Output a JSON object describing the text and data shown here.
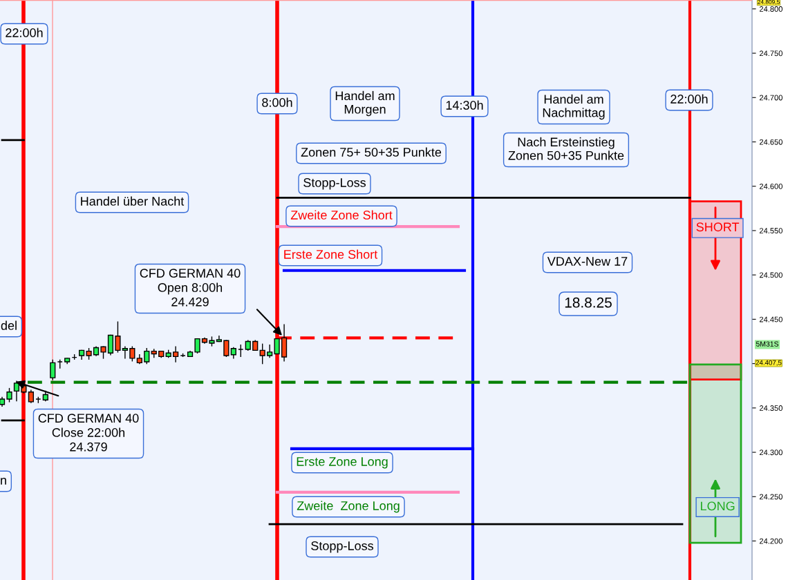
{
  "chart_data": {
    "type": "candlestick",
    "categories": [
      null,
      null,
      null,
      null,
      null,
      null,
      null,
      null,
      null,
      null,
      null,
      null,
      null,
      null,
      null,
      null,
      null,
      null,
      null,
      null,
      null,
      null,
      null,
      null,
      null,
      null,
      null,
      null,
      null,
      null,
      null,
      null,
      null,
      null,
      null,
      null,
      null,
      null,
      null,
      null,
      null,
      null,
      null,
      null,
      null,
      null,
      null,
      null,
      null,
      null,
      null,
      null,
      null,
      null,
      null,
      null,
      null,
      null,
      null,
      null,
      null,
      null,
      null,
      null,
      null,
      null,
      null,
      null,
      null,
      null,
      null,
      null,
      null,
      null,
      null,
      null,
      null,
      null,
      null,
      null,
      null,
      null,
      null,
      null,
      null,
      null,
      null,
      null,
      null,
      null,
      null,
      null,
      null,
      null,
      null,
      null,
      null,
      null,
      null,
      null,
      null,
      null,
      null,
      null
    ],
    "ohlc": [
      [
        24354,
        24362,
        24352,
        24360
      ],
      [
        24360,
        24372,
        24357,
        24368
      ],
      [
        24369,
        24380,
        24358,
        24378
      ],
      [
        24375,
        24377,
        24367,
        24368
      ],
      [
        24368,
        24370,
        24356,
        24357
      ],
      [
        24360,
        24362,
        24356,
        24360
      ],
      [
        24359,
        24369,
        24358,
        24365
      ],
      [
        24384,
        24404,
        24382,
        24401
      ],
      [
        24402,
        24404,
        24395,
        24402
      ],
      [
        24402,
        24406,
        24400,
        24406
      ],
      [
        24407,
        24410,
        24405,
        24407
      ],
      [
        24409,
        24415,
        24405,
        24415
      ],
      [
        24414,
        24417,
        24405,
        24409
      ],
      [
        24410,
        24419,
        24409,
        24418
      ],
      [
        24419,
        24419,
        24406,
        24413
      ],
      [
        24412,
        24432,
        24410,
        24432
      ],
      [
        24431,
        24447,
        24413,
        24415
      ],
      [
        24415,
        24419,
        24406,
        24417
      ],
      [
        24417,
        24419,
        24403,
        24406
      ],
      [
        24406,
        24410,
        24400,
        24401
      ],
      [
        24402,
        24417,
        24400,
        24414
      ],
      [
        24414,
        24416,
        24407,
        24411
      ],
      [
        24414,
        24414,
        24407,
        24408
      ],
      [
        24408,
        24415,
        24407,
        24412
      ],
      [
        24413,
        24419,
        24402,
        24408
      ],
      [
        24409,
        24411,
        24408,
        24409
      ],
      [
        24408,
        24414,
        24408,
        24413
      ],
      [
        24413,
        24428,
        24412,
        24428
      ],
      [
        24428,
        24429,
        24423,
        24424
      ],
      [
        24423,
        24430,
        24420,
        24426
      ],
      [
        24425,
        24431,
        24425,
        24427
      ],
      [
        24426,
        24426,
        24408,
        24409
      ],
      [
        24410,
        24418,
        24406,
        24417
      ],
      [
        24416,
        24421,
        24408,
        24416
      ],
      [
        24416,
        24426,
        24415,
        24425
      ],
      [
        24425,
        24426,
        24415,
        24415
      ],
      [
        24415,
        24422,
        24400,
        24409
      ],
      [
        24409,
        24421,
        24407,
        24413
      ],
      [
        24411,
        24428,
        24411,
        24428
      ],
      [
        24429,
        24444,
        24403,
        24407.5
      ],
      null,
      null,
      null,
      null,
      null,
      null,
      null,
      null,
      null,
      null,
      null,
      null,
      null,
      null,
      null,
      null,
      null,
      null,
      null,
      null,
      null,
      null,
      null,
      null,
      null,
      null,
      null,
      null,
      null,
      null,
      null,
      null,
      null,
      null,
      null,
      null,
      null,
      null,
      null,
      null,
      null,
      null,
      null,
      null,
      null,
      null,
      null,
      null,
      null,
      null,
      null,
      null,
      null,
      null,
      null,
      null,
      null,
      null,
      null,
      null,
      null,
      null,
      null,
      null
    ],
    "ylim": [
      24156,
      24810
    ],
    "yticks": [
      {
        "value": 24200,
        "label": "24.200"
      },
      {
        "value": 24250,
        "label": "24.250"
      },
      {
        "value": 24300,
        "label": "24.300"
      },
      {
        "value": 24350,
        "label": "24.350"
      },
      {
        "value": 24400,
        "label": null
      },
      {
        "value": 24450,
        "label": "24.450"
      },
      {
        "value": 24500,
        "label": "24.500"
      },
      {
        "value": 24550,
        "label": "24.550"
      },
      {
        "value": 24600,
        "label": "24.600"
      },
      {
        "value": 24650,
        "label": "24.650"
      },
      {
        "value": 24700,
        "label": "24.700"
      },
      {
        "value": 24750,
        "label": "24.750"
      },
      {
        "value": 24800,
        "label": "24.800"
      }
    ],
    "series": [
      {
        "type": "line",
        "color": "#000000",
        "values": [
          24652,
          24652,
          24652,
          24652,
          null,
          null,
          null,
          null,
          null,
          null,
          null,
          null,
          null,
          null,
          null,
          null,
          null,
          null,
          null,
          null,
          null,
          null,
          null,
          null,
          null,
          null,
          null,
          null,
          null,
          null,
          null,
          null,
          null,
          null,
          null,
          null,
          null,
          null,
          null,
          null,
          null,
          null,
          null,
          null,
          null,
          null,
          null,
          null,
          null,
          null,
          null,
          null,
          null,
          null,
          null,
          null,
          null,
          null,
          null,
          null,
          null,
          null,
          null,
          null,
          null,
          null,
          null,
          null,
          null,
          null,
          null,
          null,
          null,
          null,
          null,
          null,
          null,
          null,
          null,
          null,
          null,
          null,
          null,
          null,
          null,
          null,
          null,
          null,
          null,
          null,
          null,
          null,
          null,
          null,
          null,
          null,
          null,
          null,
          null,
          null,
          null,
          null,
          null,
          null
        ]
      },
      {
        "type": "line",
        "color": "#000000",
        "values": [
          24336,
          24336,
          24336,
          24336,
          null,
          null,
          null,
          null,
          null,
          null,
          null,
          null,
          null,
          null,
          null,
          null,
          null,
          null,
          null,
          null,
          null,
          null,
          null,
          null,
          null,
          null,
          null,
          null,
          null,
          null,
          null,
          null,
          null,
          null,
          null,
          null,
          null,
          null,
          null,
          null,
          null,
          null,
          null,
          null,
          null,
          null,
          null,
          null,
          null,
          null,
          null,
          null,
          null,
          null,
          null,
          null,
          null,
          null,
          null,
          null,
          null,
          null,
          null,
          null,
          null,
          null,
          null,
          null,
          null,
          null,
          null,
          null,
          null,
          null,
          null,
          null,
          null,
          null,
          null,
          null,
          null,
          null,
          null,
          null,
          null,
          null,
          null,
          null,
          null,
          null,
          null,
          null,
          null,
          null,
          null,
          null,
          null,
          null,
          null,
          null,
          null,
          null,
          null,
          null
        ]
      }
    ],
    "tick_labels": "y",
    "grid": false,
    "ref_lines": [
      {
        "axis": "y",
        "value": 24587,
        "color": "#000000"
      },
      {
        "axis": "y",
        "value": 24554.5,
        "color": "#ff88bb"
      },
      {
        "axis": "y",
        "value": 24505,
        "color": "#0000ff"
      },
      {
        "axis": "y",
        "value": 24429,
        "color": "#ff0000",
        "line_style": "dashed"
      },
      {
        "axis": "y",
        "value": 24379,
        "color": "#008000",
        "line_style": "dashed"
      },
      {
        "axis": "y",
        "value": 24304,
        "color": "#0000ff"
      },
      {
        "axis": "y",
        "value": 24255,
        "color": "#ff88bb"
      },
      {
        "axis": "y",
        "value": 24219,
        "color": "#000000"
      },
      {
        "axis": "y",
        "value": 24809.5,
        "color": "#ff9999"
      }
    ],
    "bands": [
      {
        "axis": "y",
        "from": 24382,
        "to": 24583,
        "label": "SHORT",
        "color": "#ff0000"
      },
      {
        "axis": "y",
        "from": 24198,
        "to": 24399,
        "label": "LONG",
        "color": "#22aa22"
      }
    ],
    "annotations": [
      "22:00h",
      "8:00h",
      "Handel am\nMorgen",
      "14:30h",
      "Handel am\nNachmittag",
      "22:00h",
      "Zonen 75+ 50+35 Punkte",
      "Nach Ersteinstieg\nZonen 50+35 Punkte",
      "Stopp-Loss",
      "Handel über Nacht",
      "Zweite Zone Short",
      "Erste Zone Short",
      "VDAX-New 17",
      "18.8.25",
      "CFD GERMAN 40\nOpen 8:00h\n24.429",
      "del",
      "CFD GERMAN 40\nClose 22:00h\n24.379",
      "n",
      "Erste Zone Long",
      "Zweite  Zone Long",
      "Stopp-Loss",
      "5M31S",
      "24.809,5",
      "24.407,5"
    ]
  }
}
